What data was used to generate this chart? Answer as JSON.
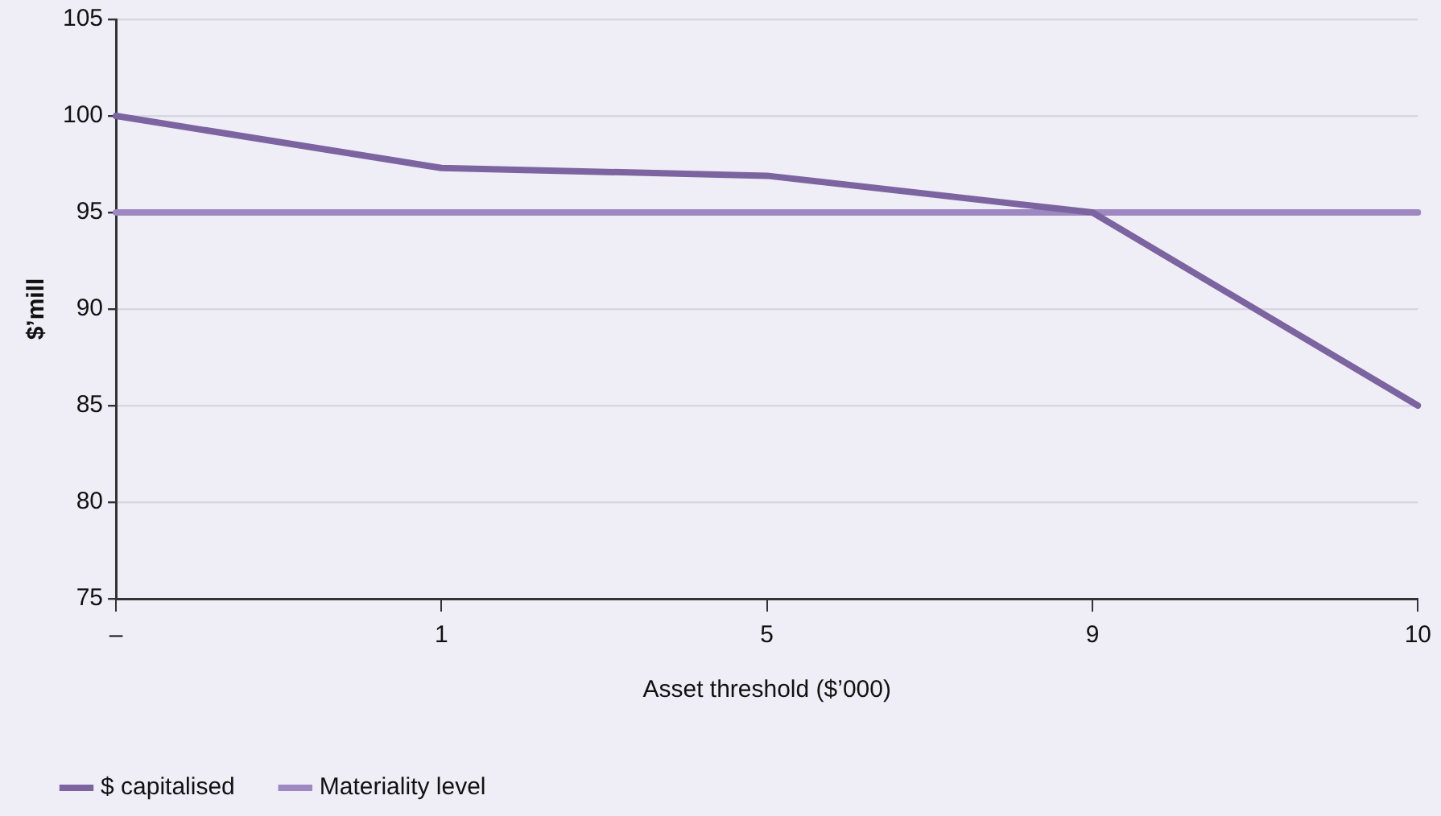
{
  "chart_data": {
    "type": "line",
    "xlabel": "Asset threshold ($’000)",
    "ylabel": "$’mill",
    "categories": [
      "–",
      "1",
      "5",
      "9",
      "10"
    ],
    "series": [
      {
        "name": "$ capitalised",
        "color": "#7b64a0",
        "values": [
          100,
          97.3,
          96.9,
          95,
          85
        ]
      },
      {
        "name": "Materiality level",
        "color": "#9e88c2",
        "values": [
          95,
          95,
          95,
          95,
          95
        ]
      }
    ],
    "ylim": [
      75,
      105
    ],
    "yticks": [
      75,
      80,
      85,
      90,
      95,
      100,
      105
    ],
    "grid": "y",
    "legend": "bottom left",
    "marker": "none",
    "line_style": "solid"
  }
}
